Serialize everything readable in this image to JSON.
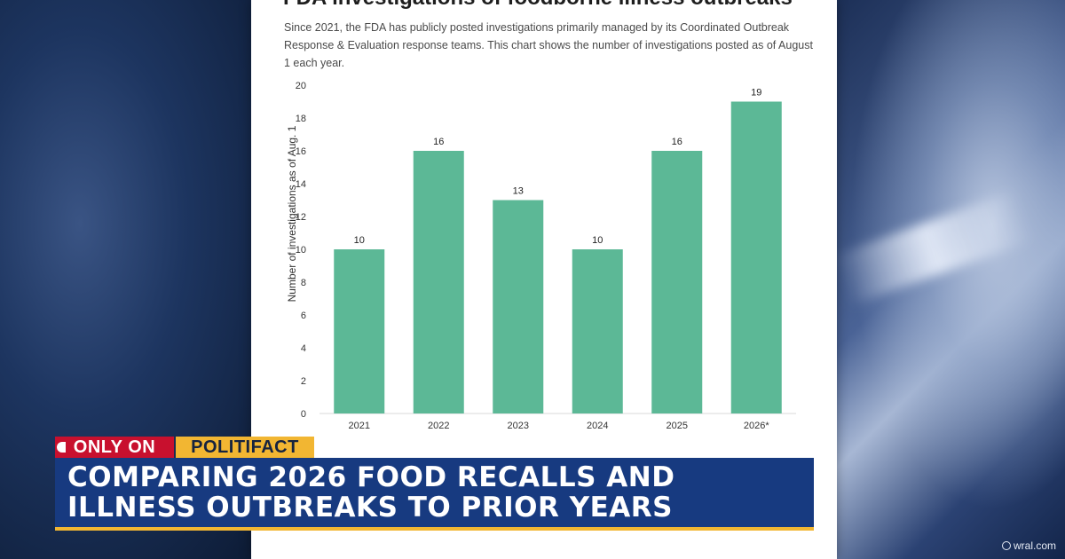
{
  "chart_data": {
    "type": "bar",
    "title": "FDA investigations of foodborne illness outbreaks",
    "description": "Since 2021, the FDA has publicly posted investigations primarily managed by its Coordinated Outbreak Response & Evaluation response teams. This chart shows the number of investigations posted as of August 1 each year.",
    "categories": [
      "2021",
      "2022",
      "2023",
      "2024",
      "2025",
      "2026*"
    ],
    "values": [
      10,
      16,
      13,
      10,
      16,
      19
    ],
    "data_labels": [
      "10",
      "16",
      "13",
      "10",
      "16",
      "19"
    ],
    "ylabel": "Number of investigations as of Aug. 1",
    "xlabel": "",
    "ylim": [
      0,
      20
    ],
    "yticks": [
      "0",
      "2",
      "4",
      "6",
      "8",
      "10",
      "12",
      "14",
      "16",
      "18",
      "20"
    ],
    "grid": false,
    "bar_color": "#5cb896"
  },
  "lower_third": {
    "tag_only": "ONLY ON",
    "tag_brand": "POLITIFACT",
    "headline_line1": "COMPARING 2026 FOOD RECALLS AND",
    "headline_line2": "ILLNESS OUTBREAKS TO PRIOR YEARS"
  },
  "watermark": "wral.com",
  "colors": {
    "tag_red": "#c8102e",
    "tag_gold": "#f2b632",
    "headline_blue": "#173a80"
  }
}
